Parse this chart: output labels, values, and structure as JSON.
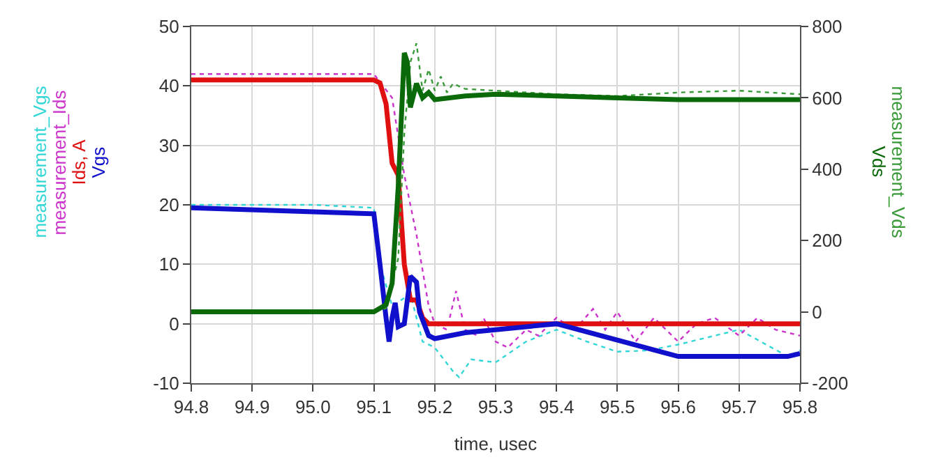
{
  "chart_data": {
    "type": "line",
    "xlabel": "time, usec",
    "grid": true,
    "legend": false,
    "marker": "none",
    "xlim": [
      94.8,
      95.8
    ],
    "xticks": [
      94.8,
      94.9,
      {
        "value": 95.0,
        "label": "95.0"
      },
      95.1,
      95.2,
      95.3,
      95.4,
      95.5,
      95.6,
      95.7,
      95.8
    ],
    "ylim": [
      -10,
      50
    ],
    "yticks": [
      -10,
      0,
      10,
      20,
      30,
      40,
      50
    ],
    "y2lim": [
      -200,
      800
    ],
    "y2ticks": [
      -200,
      0,
      200,
      400,
      600,
      800
    ],
    "series": [
      {
        "name": "measurement_Vgs",
        "color": "#33d6d6",
        "line_style": "dotted",
        "x": [
          94.8,
          95.0,
          95.1,
          95.11,
          95.13,
          95.16,
          95.18,
          95.2,
          95.23,
          95.24,
          95.26,
          95.3,
          95.35,
          95.4,
          95.45,
          95.5,
          95.55,
          95.6,
          95.7,
          95.78,
          95.8
        ],
        "values": [
          20,
          20,
          19.5,
          10,
          3,
          5,
          -3,
          -4,
          -8,
          -9,
          -6,
          -6.5,
          -3,
          -1,
          -3,
          -4.7,
          -4.5,
          -3.5,
          -1,
          -5.5,
          -4.5
        ]
      },
      {
        "name": "measurement_Ids",
        "color": "#cc33cc",
        "line_style": "dotted",
        "x": [
          94.8,
          95.0,
          95.1,
          95.13,
          95.15,
          95.17,
          95.19,
          95.2,
          95.22,
          95.235,
          95.25,
          95.27,
          95.28,
          95.3,
          95.32,
          95.35,
          95.37,
          95.4,
          95.43,
          95.46,
          95.48,
          95.5,
          95.53,
          95.56,
          95.6,
          95.63,
          95.66,
          95.7,
          95.73,
          95.76,
          95.8
        ],
        "values": [
          42,
          42,
          42,
          38,
          25,
          15,
          3,
          0,
          -1,
          5.5,
          -1,
          -2,
          1,
          -3,
          -4,
          -1,
          -2,
          1,
          -1,
          2.5,
          -1,
          2,
          -3,
          1,
          -3,
          0,
          1,
          -2,
          1,
          -1,
          -2
        ]
      },
      {
        "name": "Ids, A",
        "color": "#e01010",
        "line_style": "solid",
        "x": [
          94.8,
          95.1,
          95.11,
          95.12,
          95.13,
          95.14,
          95.15,
          95.16,
          95.17,
          95.18,
          95.19,
          95.8
        ],
        "values": [
          41,
          41,
          40.5,
          37,
          27,
          25,
          10,
          4,
          4,
          1,
          0,
          0
        ]
      },
      {
        "name": "Vgs",
        "color": "#1010cc",
        "line_style": "solid",
        "x": [
          94.8,
          95.1,
          95.11,
          95.12,
          95.125,
          95.13,
          95.135,
          95.14,
          95.15,
          95.16,
          95.17,
          95.175,
          95.19,
          95.2,
          95.25,
          95.3,
          95.4,
          95.6,
          95.78,
          95.8
        ],
        "values": [
          19.5,
          18.5,
          10,
          1,
          -3,
          1,
          3.5,
          -0.5,
          0,
          8,
          7,
          2,
          -2,
          -2.5,
          -1.5,
          -1,
          0,
          -5.5,
          -5.5,
          -5
        ]
      },
      {
        "name": "measurement_Vds",
        "color": "#3a9a3a",
        "line_style": "dotted",
        "axis": "y2",
        "x": [
          94.8,
          95.1,
          95.12,
          95.14,
          95.15,
          95.16,
          95.17,
          95.18,
          95.19,
          95.2,
          95.21,
          95.22,
          95.23,
          95.25,
          95.3,
          95.4,
          95.5,
          95.6,
          95.7,
          95.8
        ],
        "values": [
          0,
          0,
          10,
          150,
          500,
          700,
          753,
          620,
          680,
          620,
          660,
          615,
          640,
          625,
          620,
          610,
          605,
          615,
          620,
          610
        ]
      },
      {
        "name": "Vds",
        "color": "#0a6a0a",
        "line_style": "solid",
        "axis": "y2",
        "x": [
          94.8,
          95.1,
          95.12,
          95.13,
          95.14,
          95.15,
          95.155,
          95.16,
          95.17,
          95.18,
          95.19,
          95.2,
          95.25,
          95.3,
          95.4,
          95.5,
          95.6,
          95.8
        ],
        "values": [
          0,
          0,
          20,
          80,
          350,
          726,
          700,
          573,
          640,
          600,
          615,
          595,
          605,
          610,
          605,
          600,
          595,
          595
        ]
      }
    ]
  }
}
